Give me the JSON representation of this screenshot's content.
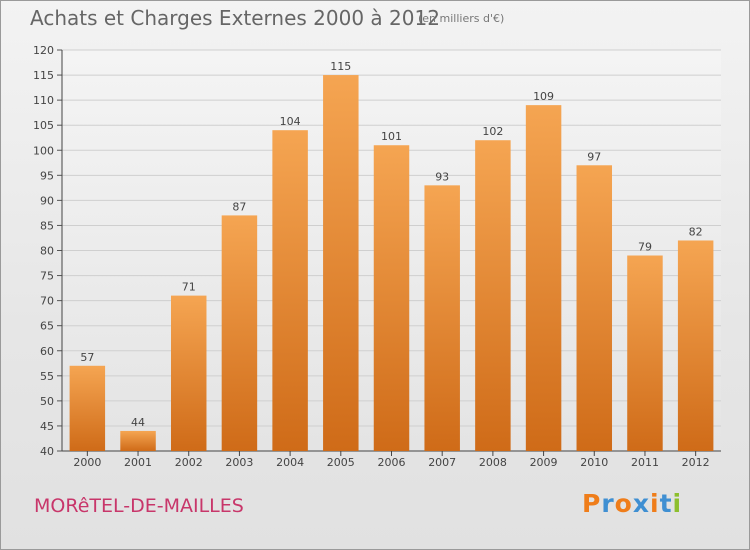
{
  "header": {
    "title": "Achats et Charges Externes 2000 à 2012",
    "unit": "(en milliers d'€)"
  },
  "footer": {
    "commune": "MORêTEL-DE-MAILLES",
    "logo": "Proxiti"
  },
  "colors": {
    "bar_top": "#f5a552",
    "bar_bottom": "#cf6b18",
    "commune_text": "#c8366a",
    "logo_letters": [
      "#ef7d1a",
      "#3f8fd2",
      "#ef7d1a",
      "#3f8fd2",
      "#ef7d1a",
      "#3f8fd2",
      "#8dbf2e"
    ]
  },
  "chart_data": {
    "type": "bar",
    "title": "Achats et Charges Externes 2000 à 2012",
    "subtitle": "(en milliers d'€)",
    "categories": [
      "2000",
      "2001",
      "2002",
      "2003",
      "2004",
      "2005",
      "2006",
      "2007",
      "2008",
      "2009",
      "2010",
      "2011",
      "2012"
    ],
    "values": [
      57,
      44,
      71,
      87,
      104,
      115,
      101,
      93,
      102,
      109,
      97,
      79,
      82
    ],
    "xlabel": "",
    "ylabel": "",
    "ylim": [
      40,
      120
    ],
    "yticks": [
      40,
      45,
      50,
      55,
      60,
      65,
      70,
      75,
      80,
      85,
      90,
      95,
      100,
      105,
      110,
      115,
      120
    ],
    "grid": true,
    "data_labels": true
  }
}
